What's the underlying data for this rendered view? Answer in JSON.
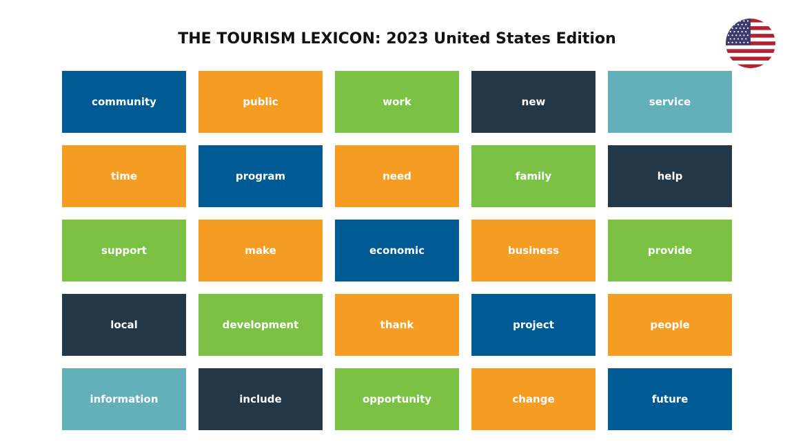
{
  "header": {
    "title": "THE TOURISM LEXICON: 2023 United States Edition"
  },
  "tiles": [
    [
      {
        "label": "community",
        "color": "#005b94"
      },
      {
        "label": "public",
        "color": "#f59c22"
      },
      {
        "label": "work",
        "color": "#7bc144"
      },
      {
        "label": "new",
        "color": "#243746"
      },
      {
        "label": "service",
        "color": "#63afba"
      }
    ],
    [
      {
        "label": "time",
        "color": "#f59c22"
      },
      {
        "label": "program",
        "color": "#005b94"
      },
      {
        "label": "need",
        "color": "#f59c22"
      },
      {
        "label": "family",
        "color": "#7bc144"
      },
      {
        "label": "help",
        "color": "#243746"
      }
    ],
    [
      {
        "label": "support",
        "color": "#7bc144"
      },
      {
        "label": "make",
        "color": "#f59c22"
      },
      {
        "label": "economic",
        "color": "#005b94"
      },
      {
        "label": "business",
        "color": "#f59c22"
      },
      {
        "label": "provide",
        "color": "#7bc144"
      }
    ],
    [
      {
        "label": "local",
        "color": "#243746"
      },
      {
        "label": "development",
        "color": "#7bc144"
      },
      {
        "label": "thank",
        "color": "#f59c22"
      },
      {
        "label": "project",
        "color": "#005b94"
      },
      {
        "label": "people",
        "color": "#f59c22"
      }
    ],
    [
      {
        "label": "information",
        "color": "#63afba"
      },
      {
        "label": "include",
        "color": "#243746"
      },
      {
        "label": "opportunity",
        "color": "#7bc144"
      },
      {
        "label": "change",
        "color": "#f59c22"
      },
      {
        "label": "future",
        "color": "#005b94"
      }
    ]
  ]
}
